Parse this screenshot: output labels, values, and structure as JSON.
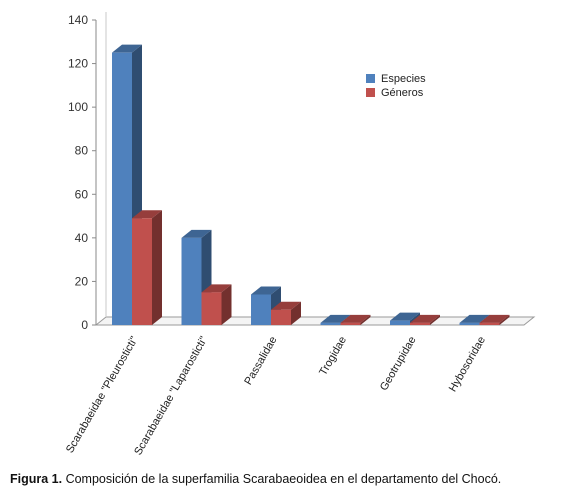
{
  "chart_data": {
    "type": "bar",
    "style": "3d-clustered-column",
    "categories": [
      "Scarabaeidae \"Pleurosticti\"",
      "Scarabaeidae \"Laparosticti\"",
      "Passalidae",
      "Trogidae",
      "Geotrupidae",
      "Hybosoridae"
    ],
    "series": [
      {
        "name": "Especies",
        "color": "#4f81bd",
        "values": [
          125,
          40,
          14,
          1,
          2,
          1
        ]
      },
      {
        "name": "Géneros",
        "color": "#c0504d",
        "values": [
          49,
          15,
          7,
          1,
          1,
          1
        ]
      }
    ],
    "yticks": [
      0,
      20,
      40,
      60,
      80,
      100,
      120,
      140
    ],
    "ylim": [
      0,
      140
    ],
    "grid": false,
    "legend": {
      "position": "right",
      "items": [
        "Especies",
        "Géneros"
      ]
    }
  },
  "caption": {
    "label": "Figura 1.",
    "text": " Composición de la superfamilia Scarabaeoidea en el departamento del Chocó."
  }
}
